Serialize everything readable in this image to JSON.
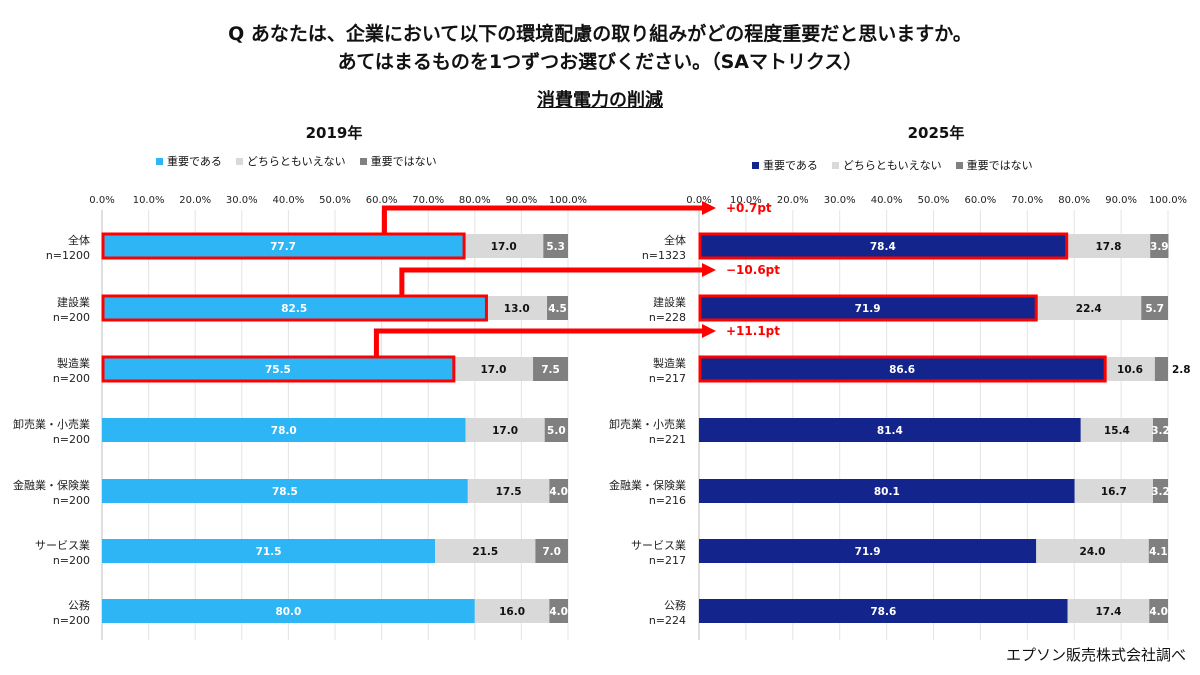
{
  "question": {
    "line1": "Q あなたは、企業において以下の環境配慮の取り組みがどの程度重要だと思いますか。",
    "line2": "あてはまるものを1つずつお選びください。（SAマトリクス）"
  },
  "subtitle": "消費電力の削減",
  "source": "エプソン販売株式会社調べ",
  "colors": {
    "left_primary": "#2eb5f5",
    "right_primary": "#13248c",
    "neutral": "#d9d9d9",
    "not_important": "#808080",
    "highlight": "#ff0000"
  },
  "chart_data": [
    {
      "type": "bar",
      "orientation": "horizontal-stacked",
      "title": "2019年",
      "ticks": [
        "0.0%",
        "10.0%",
        "20.0%",
        "30.0%",
        "40.0%",
        "50.0%",
        "60.0%",
        "70.0%",
        "80.0%",
        "90.0%",
        "100.0%"
      ],
      "xlim": [
        0,
        100
      ],
      "grid": true,
      "legend_position": "top",
      "categories": [
        "全体",
        "建設業",
        "製造業",
        "卸売業・小売業",
        "金融業・保険業",
        "サービス業",
        "公務"
      ],
      "n_labels": [
        "n=1200",
        "n=200",
        "n=200",
        "n=200",
        "n=200",
        "n=200",
        "n=200"
      ],
      "series": [
        {
          "name": "重要である",
          "values": [
            77.7,
            82.5,
            75.5,
            78.0,
            78.5,
            71.5,
            80.0
          ],
          "labels": [
            "77.7",
            "82.5",
            "75.5",
            "78.0",
            "78.5",
            "71.5",
            "80.0"
          ]
        },
        {
          "name": "どちらともいえない",
          "values": [
            17.0,
            13.0,
            17.0,
            17.0,
            17.5,
            21.5,
            16.0
          ],
          "labels": [
            "17.0",
            "13.0",
            "17.0",
            "17.0",
            "17.5",
            "21.5",
            "16.0"
          ]
        },
        {
          "name": "重要ではない",
          "values": [
            5.3,
            4.5,
            7.5,
            5.0,
            4.0,
            7.0,
            4.0
          ],
          "labels": [
            "5.3",
            "4.5",
            "7.5",
            "5.0",
            "4.0",
            "7.0",
            "4.0"
          ]
        }
      ],
      "highlighted_rows": [
        0,
        1,
        2
      ]
    },
    {
      "type": "bar",
      "orientation": "horizontal-stacked",
      "title": "2025年",
      "ticks": [
        "0.0%",
        "10.0%",
        "20.0%",
        "30.0%",
        "40.0%",
        "50.0%",
        "60.0%",
        "70.0%",
        "80.0%",
        "90.0%",
        "100.0%"
      ],
      "xlim": [
        0,
        100
      ],
      "grid": true,
      "legend_position": "top",
      "categories": [
        "全体",
        "建設業",
        "製造業",
        "卸売業・小売業",
        "金融業・保険業",
        "サービス業",
        "公務"
      ],
      "n_labels": [
        "n=1323",
        "n=228",
        "n=217",
        "n=221",
        "n=216",
        "n=217",
        "n=224"
      ],
      "series": [
        {
          "name": "重要である",
          "values": [
            78.4,
            71.9,
            86.6,
            81.4,
            80.1,
            71.9,
            78.6
          ],
          "labels": [
            "78.4",
            "71.9",
            "86.6",
            "81.4",
            "80.1",
            "71.9",
            "78.6"
          ]
        },
        {
          "name": "どちらともいえない",
          "values": [
            17.8,
            22.4,
            10.6,
            15.4,
            16.7,
            24.0,
            17.4
          ],
          "labels": [
            "17.8",
            "22.4",
            "10.6",
            "15.4",
            "16.7",
            "24.0",
            "17.4"
          ]
        },
        {
          "name": "重要ではない",
          "values": [
            3.9,
            5.7,
            2.8,
            3.2,
            3.2,
            4.1,
            4.0
          ],
          "labels": [
            "3.9",
            "5.7",
            "2.8",
            "3.2",
            "3.2",
            "4.1",
            "4.0"
          ]
        }
      ],
      "highlighted_rows": [
        0,
        1,
        2
      ]
    }
  ],
  "annotations": [
    {
      "row": 0,
      "text": "+0.7pt"
    },
    {
      "row": 1,
      "text": "−10.6pt"
    },
    {
      "row": 2,
      "text": "+11.1pt"
    }
  ]
}
